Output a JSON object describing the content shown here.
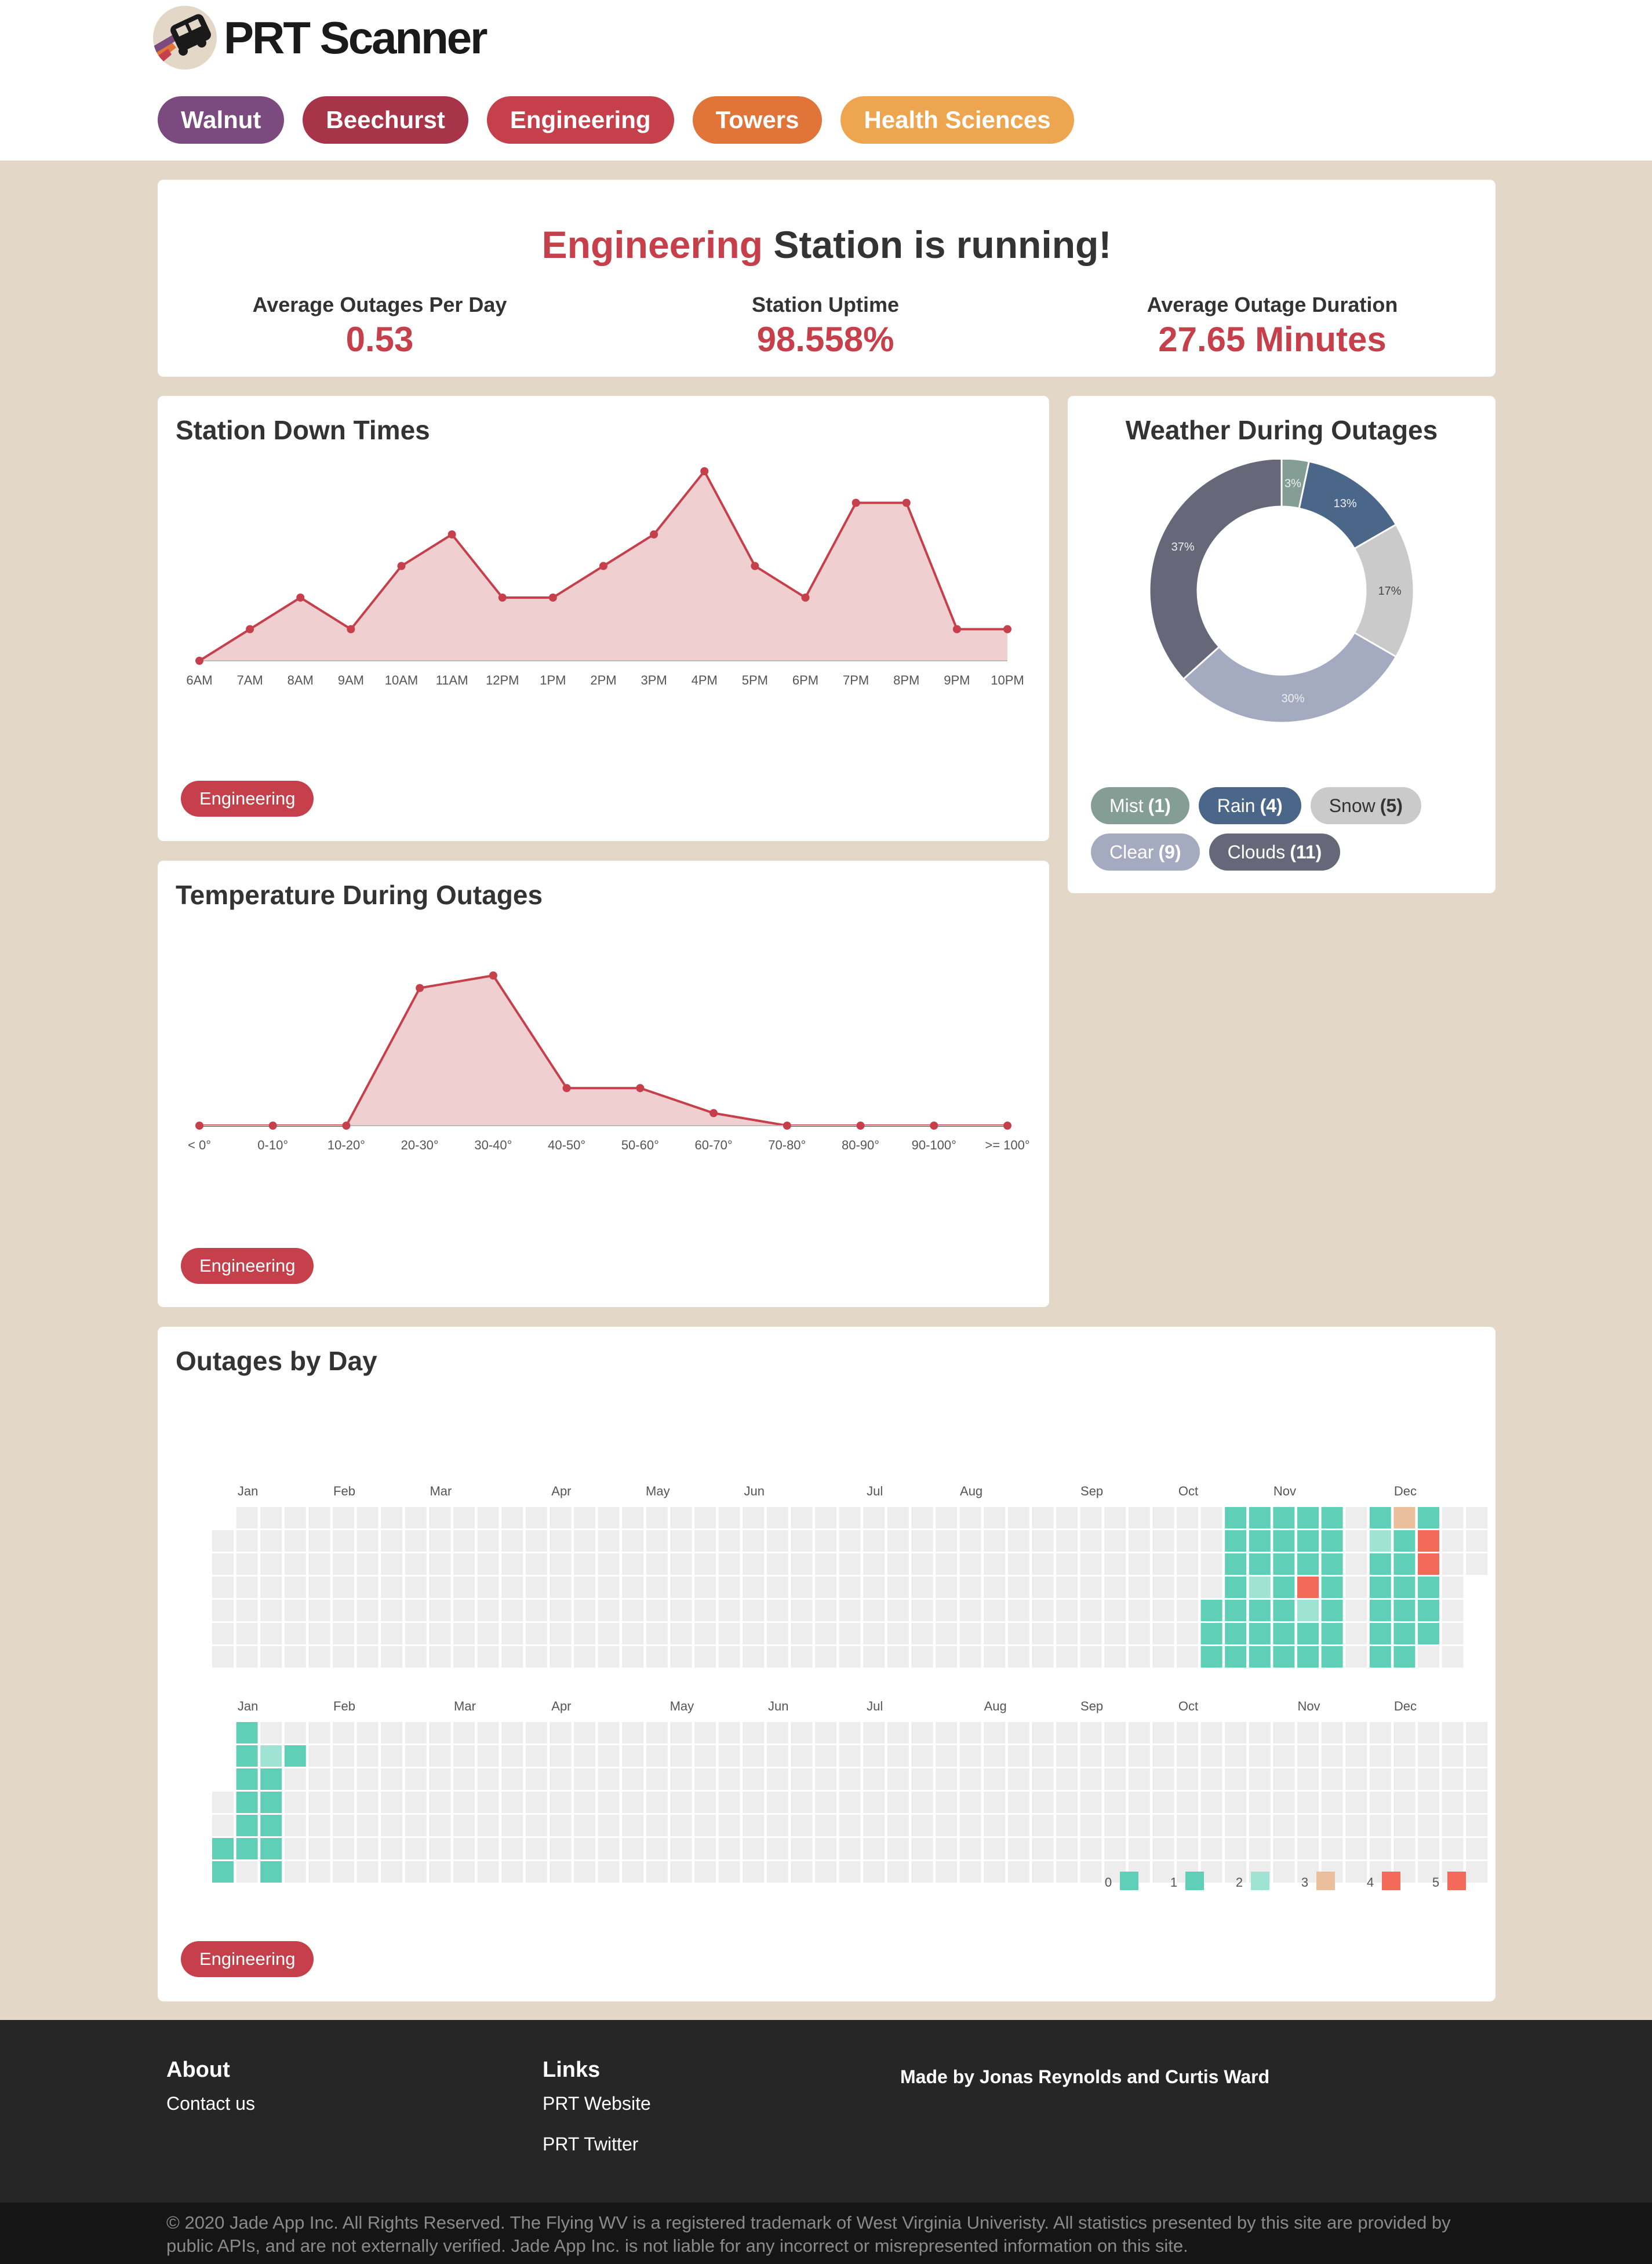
{
  "app": {
    "title": "PRT Scanner",
    "nav": [
      {
        "label": "Walnut",
        "color": "#7b4a7f"
      },
      {
        "label": "Beechurst",
        "color": "#a8344a"
      },
      {
        "label": "Engineering",
        "color": "#c5404a"
      },
      {
        "label": "Towers",
        "color": "#e07439"
      },
      {
        "label": "Health Sciences",
        "color": "#eda64f"
      }
    ]
  },
  "status": {
    "station": "Engineering",
    "suffix": " Station is running!",
    "stats": [
      {
        "label": "Average Outages Per Day",
        "value": "0.53"
      },
      {
        "label": "Station Uptime",
        "value": "98.558%"
      },
      {
        "label": "Average Outage Duration",
        "value": "27.65 Minutes"
      }
    ]
  },
  "downtimes": {
    "title": "Station Down Times",
    "tag": "Engineering",
    "chart_data": {
      "type": "area",
      "categories": [
        "6AM",
        "7AM",
        "8AM",
        "9AM",
        "10AM",
        "11AM",
        "12PM",
        "1PM",
        "2PM",
        "3PM",
        "4PM",
        "5PM",
        "6PM",
        "7PM",
        "8PM",
        "9PM",
        "10PM"
      ],
      "values": [
        0,
        1,
        2,
        1,
        3,
        4,
        2,
        2,
        3,
        4,
        6,
        3,
        2,
        5,
        5,
        1,
        1
      ],
      "ylim": [
        0,
        6
      ]
    }
  },
  "weather": {
    "title": "Weather During Outages",
    "chart_data": {
      "type": "pie",
      "slices": [
        {
          "name": "Mist",
          "value": 1,
          "label": "3%",
          "color": "#849e96"
        },
        {
          "name": "Rain",
          "value": 4,
          "label": "13%",
          "color": "#4a6688"
        },
        {
          "name": "Snow",
          "value": 5,
          "label": "17%",
          "color": "#cacaca"
        },
        {
          "name": "Clear",
          "value": 9,
          "label": "30%",
          "color": "#a4abc0"
        },
        {
          "name": "Clouds",
          "value": 11,
          "label": "37%",
          "color": "#67677a"
        }
      ]
    },
    "legend": [
      {
        "name": "Mist",
        "count": "(1)",
        "color": "#849e96",
        "text": "#ffffff"
      },
      {
        "name": "Rain",
        "count": "(4)",
        "color": "#4a6688",
        "text": "#ffffff"
      },
      {
        "name": "Snow",
        "count": "(5)",
        "color": "#cacaca",
        "text": "#333333"
      },
      {
        "name": "Clear",
        "count": "(9)",
        "color": "#a4abc0",
        "text": "#ffffff"
      },
      {
        "name": "Clouds",
        "count": "(11)",
        "color": "#67677a",
        "text": "#ffffff"
      }
    ]
  },
  "temperature": {
    "title": "Temperature During Outages",
    "tag": "Engineering",
    "chart_data": {
      "type": "area",
      "categories": [
        "< 0°",
        "0-10°",
        "10-20°",
        "20-30°",
        "30-40°",
        "40-50°",
        "50-60°",
        "60-70°",
        "70-80°",
        "80-90°",
        "90-100°",
        ">= 100°"
      ],
      "values": [
        0,
        0,
        0,
        11,
        12,
        3,
        3,
        1,
        0,
        0,
        0,
        0
      ],
      "ylim": [
        0,
        12
      ]
    }
  },
  "calendar": {
    "title": "Outages by Day",
    "tag": "Engineering",
    "years": [
      {
        "months": [
          {
            "label": "Jan",
            "col": 1
          },
          {
            "label": "Feb",
            "col": 5
          },
          {
            "label": "Mar",
            "col": 9
          },
          {
            "label": "Apr",
            "col": 14
          },
          {
            "label": "May",
            "col": 18
          },
          {
            "label": "Jun",
            "col": 22
          },
          {
            "label": "Jul",
            "col": 27
          },
          {
            "label": "Aug",
            "col": 31
          },
          {
            "label": "Sep",
            "col": 36
          },
          {
            "label": "Oct",
            "col": 40
          },
          {
            "label": "Nov",
            "col": 44
          },
          {
            "label": "Dec",
            "col": 49
          }
        ],
        "first_col_start": 1,
        "last_col_rows": 3,
        "cells": [
          [
            42,
            1,
            1
          ],
          [
            42,
            2,
            1
          ],
          [
            42,
            3,
            1
          ],
          [
            42,
            4,
            1
          ],
          [
            42,
            5,
            1
          ],
          [
            43,
            1,
            1
          ],
          [
            43,
            2,
            1
          ],
          [
            43,
            3,
            2
          ],
          [
            43,
            4,
            1
          ],
          [
            43,
            5,
            1
          ],
          [
            44,
            1,
            1
          ],
          [
            44,
            2,
            1
          ],
          [
            44,
            3,
            1
          ],
          [
            44,
            4,
            1
          ],
          [
            44,
            5,
            1
          ],
          [
            45,
            1,
            1
          ],
          [
            45,
            2,
            1
          ],
          [
            45,
            3,
            5
          ],
          [
            45,
            4,
            2
          ],
          [
            45,
            5,
            1
          ],
          [
            46,
            1,
            1
          ],
          [
            46,
            2,
            1
          ],
          [
            46,
            3,
            1
          ],
          [
            46,
            4,
            1
          ],
          [
            46,
            5,
            1
          ],
          [
            41,
            4,
            1
          ],
          [
            41,
            5,
            1
          ],
          [
            41,
            6,
            1
          ],
          [
            42,
            0,
            1
          ],
          [
            42,
            6,
            1
          ],
          [
            43,
            0,
            1
          ],
          [
            43,
            6,
            1
          ],
          [
            44,
            0,
            1
          ],
          [
            44,
            6,
            1
          ],
          [
            45,
            0,
            1
          ],
          [
            45,
            6,
            1
          ],
          [
            46,
            0,
            1
          ],
          [
            46,
            6,
            1
          ],
          [
            48,
            0,
            1
          ],
          [
            48,
            1,
            2
          ],
          [
            48,
            2,
            1
          ],
          [
            48,
            3,
            1
          ],
          [
            48,
            4,
            1
          ],
          [
            48,
            5,
            1
          ],
          [
            48,
            6,
            1
          ],
          [
            49,
            0,
            3
          ],
          [
            49,
            1,
            1
          ],
          [
            49,
            2,
            1
          ],
          [
            49,
            3,
            1
          ],
          [
            49,
            4,
            1
          ],
          [
            49,
            5,
            1
          ],
          [
            49,
            6,
            1
          ],
          [
            50,
            0,
            1
          ],
          [
            50,
            1,
            5
          ],
          [
            50,
            2,
            5
          ],
          [
            50,
            3,
            1
          ],
          [
            50,
            4,
            1
          ],
          [
            50,
            5,
            1
          ]
        ]
      },
      {
        "months": [
          {
            "label": "Jan",
            "col": 1
          },
          {
            "label": "Feb",
            "col": 5
          },
          {
            "label": "Mar",
            "col": 10
          },
          {
            "label": "Apr",
            "col": 14
          },
          {
            "label": "May",
            "col": 19
          },
          {
            "label": "Jun",
            "col": 23
          },
          {
            "label": "Jul",
            "col": 27
          },
          {
            "label": "Aug",
            "col": 32
          },
          {
            "label": "Sep",
            "col": 36
          },
          {
            "label": "Oct",
            "col": 40
          },
          {
            "label": "Nov",
            "col": 45
          },
          {
            "label": "Dec",
            "col": 49
          }
        ],
        "first_col_start": 3,
        "last_col_rows": 7,
        "cells": [
          [
            1,
            0,
            1
          ],
          [
            1,
            1,
            1
          ],
          [
            1,
            2,
            1
          ],
          [
            1,
            3,
            1
          ],
          [
            1,
            4,
            1
          ],
          [
            1,
            5,
            1
          ],
          [
            0,
            5,
            1
          ],
          [
            0,
            6,
            1
          ],
          [
            2,
            1,
            2
          ],
          [
            2,
            2,
            1
          ],
          [
            2,
            3,
            1
          ],
          [
            2,
            4,
            1
          ],
          [
            2,
            5,
            1
          ],
          [
            2,
            6,
            1
          ],
          [
            3,
            1,
            1
          ]
        ]
      }
    ],
    "legend": [
      {
        "label": "0",
        "color": "#5fcfb8"
      },
      {
        "label": "1",
        "color": "#5fcfb8"
      },
      {
        "label": "2",
        "color": "#9fe3d5"
      },
      {
        "label": "3",
        "color": "#ebbf9b"
      },
      {
        "label": "4",
        "color": "#f36a5b"
      },
      {
        "label": "5",
        "color": "#f36a5b"
      }
    ],
    "colors": {
      "empty": "#ededed",
      "1": "#5fcfb8",
      "2": "#9fe3d5",
      "3": "#ebbf9b",
      "4": "#f36a5b",
      "5": "#f36a5b"
    }
  },
  "footer": {
    "about_head": "About",
    "contact": "Contact us",
    "links_head": "Links",
    "prt_website": "PRT Website",
    "prt_twitter": "PRT Twitter",
    "credits": "Made by Jonas Reynolds and Curtis Ward",
    "copyright": "© 2020 Jade App Inc. All Rights Reserved. The Flying WV is a registered trademark of West Virginia Univeristy. All statistics presented by this site are provided by public APIs, and are not externally verified. Jade App Inc. is not liable for any incorrect or misrepresented information on this site."
  },
  "colors": {
    "accent": "#c5404a",
    "area_fill": "#f0cfd0"
  }
}
